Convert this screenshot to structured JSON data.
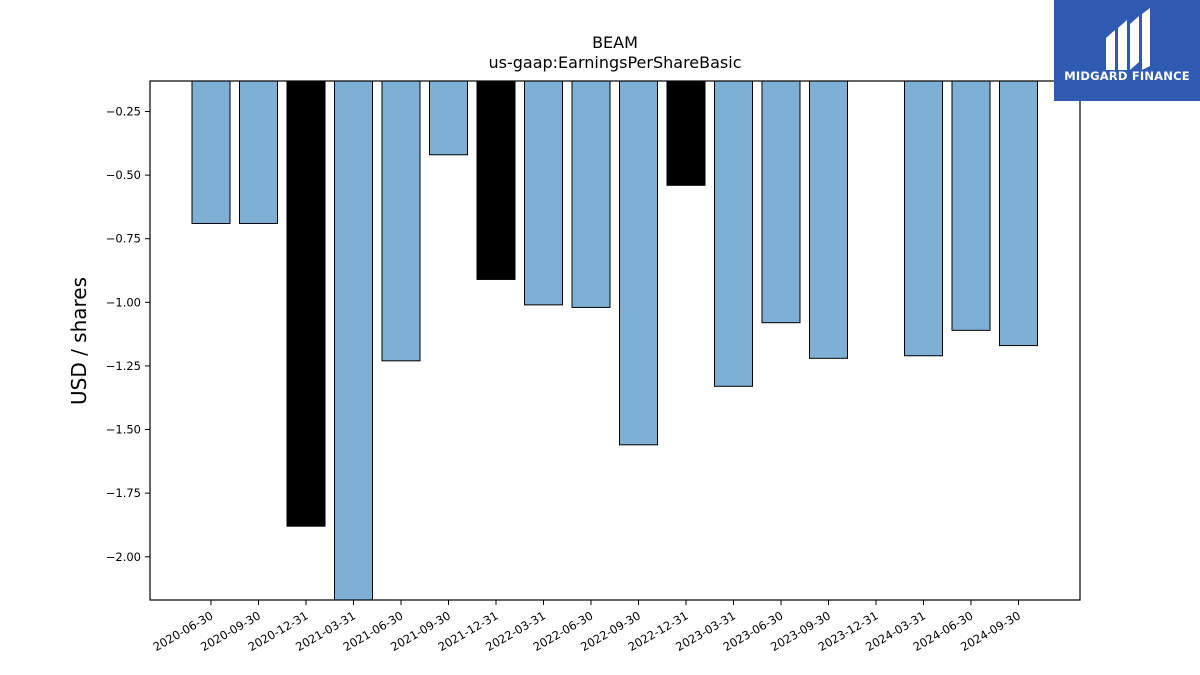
{
  "brand": {
    "name": "MIDGARD FINANCE",
    "background_color": "#2f5bb3"
  },
  "chart_data": {
    "type": "bar",
    "title": "BEAM",
    "subtitle": "us-gaap:EarningsPerShareBasic",
    "xlabel": "",
    "ylabel": "USD / shares",
    "categories": [
      "2020-06-30",
      "2020-09-30",
      "2020-12-31",
      "2021-03-31",
      "2021-06-30",
      "2021-09-30",
      "2021-12-31",
      "2022-03-31",
      "2022-06-30",
      "2022-09-30",
      "2022-12-31",
      "2023-03-31",
      "2023-06-30",
      "2023-09-30",
      "2023-12-31",
      "2024-03-31",
      "2024-06-30",
      "2024-09-30"
    ],
    "values": [
      -0.69,
      -0.69,
      -1.88,
      -2.25,
      -1.23,
      -0.42,
      -0.91,
      -1.01,
      -1.02,
      -1.56,
      -0.54,
      -1.33,
      -1.08,
      -1.22,
      null,
      -1.21,
      -1.11,
      -1.17
    ],
    "bar_colors": [
      "#7eb0d5",
      "#7eb0d5",
      "#000000",
      "#7eb0d5",
      "#7eb0d5",
      "#7eb0d5",
      "#000000",
      "#7eb0d5",
      "#7eb0d5",
      "#7eb0d5",
      "#000000",
      "#7eb0d5",
      "#7eb0d5",
      "#7eb0d5",
      "#7eb0d5",
      "#7eb0d5",
      "#7eb0d5",
      "#7eb0d5"
    ],
    "ylim": [
      -2.17,
      -0.13
    ],
    "yticks": [
      -0.25,
      -0.5,
      -0.75,
      -1.0,
      -1.25,
      -1.5,
      -1.75,
      -2.0
    ],
    "ytick_labels": [
      "−0.25",
      "−0.50",
      "−0.75",
      "−1.00",
      "−1.25",
      "−1.50",
      "−1.75",
      "−2.00"
    ],
    "grid": false,
    "colors": {
      "quarter_bar": "#7eb0d5",
      "year_end_bar": "#000000",
      "bar_edge": "#000000"
    }
  }
}
